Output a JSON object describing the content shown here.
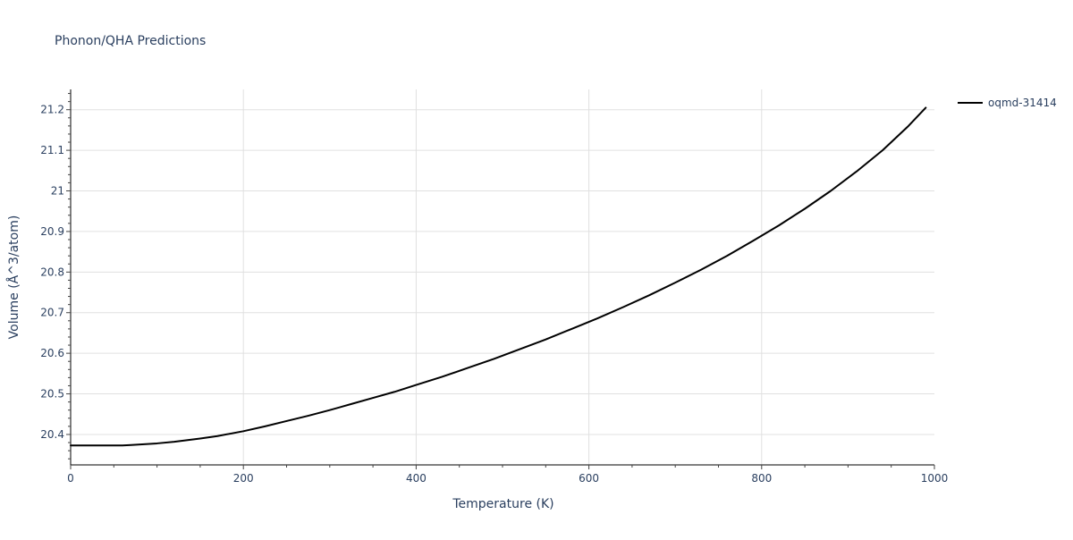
{
  "chart_data": {
    "type": "line",
    "title": "Phonon/QHA Predictions",
    "xlabel": "Temperature (K)",
    "ylabel": "Volume (Å^3/atom)",
    "xlim": [
      0,
      1000
    ],
    "ylim": [
      20.325,
      21.25
    ],
    "xticks": [
      0,
      200,
      400,
      600,
      800,
      1000
    ],
    "xtick_labels": [
      "0",
      "200",
      "400",
      "600",
      "800",
      "1000"
    ],
    "yticks": [
      20.4,
      20.5,
      20.6,
      20.7,
      20.8,
      20.9,
      21.0,
      21.1,
      21.2
    ],
    "ytick_labels": [
      "20.4",
      "20.5",
      "20.6",
      "20.7",
      "20.8",
      "20.9",
      "21",
      "21.1",
      "21.2"
    ],
    "grid": true,
    "legend_position": "top-right",
    "series": [
      {
        "name": "oqmd-31414",
        "color": "#000000",
        "x": [
          0,
          20,
          40,
          60,
          70,
          100,
          120,
          150,
          170,
          200,
          225,
          250,
          275,
          300,
          325,
          350,
          375,
          400,
          430,
          460,
          490,
          520,
          550,
          580,
          610,
          640,
          670,
          700,
          730,
          760,
          790,
          820,
          850,
          880,
          910,
          940,
          970,
          990
        ],
        "y": [
          20.373,
          20.373,
          20.373,
          20.373,
          20.374,
          20.378,
          20.382,
          20.39,
          20.396,
          20.408,
          20.42,
          20.433,
          20.446,
          20.46,
          20.475,
          20.49,
          20.505,
          20.522,
          20.542,
          20.564,
          20.586,
          20.61,
          20.634,
          20.66,
          20.686,
          20.714,
          20.743,
          20.774,
          20.806,
          20.84,
          20.877,
          20.915,
          20.956,
          21.0,
          21.048,
          21.1,
          21.16,
          21.205
        ]
      }
    ]
  }
}
